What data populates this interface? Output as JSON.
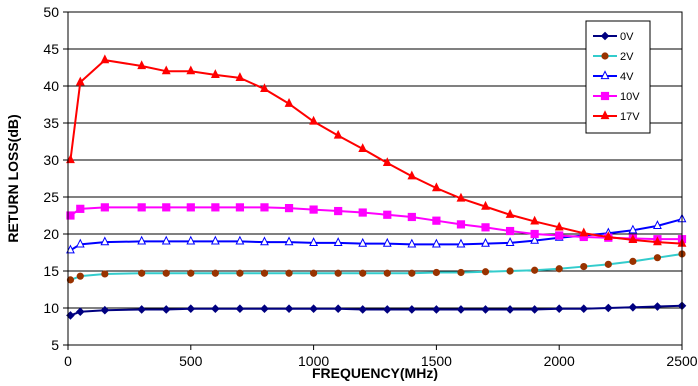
{
  "chart_data": {
    "type": "line",
    "title": "",
    "xlabel": "FREQUENCY(MHz)",
    "ylabel": "RETURN LOSS(dB)",
    "xlim": [
      0,
      2500
    ],
    "ylim": [
      5,
      50
    ],
    "xticks": [
      0,
      500,
      1000,
      1500,
      2000,
      2500
    ],
    "yticks": [
      5,
      10,
      15,
      20,
      25,
      30,
      35,
      40,
      45,
      50
    ],
    "grid": "horizontal",
    "legend": "top-right",
    "series": [
      {
        "name": "0V",
        "color": "#000080",
        "marker": "diamond",
        "x": [
          10,
          50,
          150,
          300,
          400,
          500,
          600,
          700,
          800,
          900,
          1000,
          1100,
          1200,
          1300,
          1400,
          1500,
          1600,
          1700,
          1800,
          1900,
          2000,
          2100,
          2200,
          2300,
          2400,
          2500
        ],
        "y": [
          9.0,
          9.5,
          9.7,
          9.8,
          9.8,
          9.9,
          9.9,
          9.9,
          9.9,
          9.9,
          9.9,
          9.9,
          9.8,
          9.8,
          9.8,
          9.8,
          9.8,
          9.8,
          9.8,
          9.8,
          9.9,
          9.9,
          10.0,
          10.1,
          10.2,
          10.3
        ]
      },
      {
        "name": "2V",
        "color": "#993300",
        "marker": "circle",
        "line_color": "#33CCCC",
        "x": [
          10,
          50,
          150,
          300,
          400,
          500,
          600,
          700,
          800,
          900,
          1000,
          1100,
          1200,
          1300,
          1400,
          1500,
          1600,
          1700,
          1800,
          1900,
          2000,
          2100,
          2200,
          2300,
          2400,
          2500
        ],
        "y": [
          13.8,
          14.3,
          14.6,
          14.7,
          14.7,
          14.7,
          14.7,
          14.7,
          14.7,
          14.7,
          14.7,
          14.7,
          14.7,
          14.7,
          14.7,
          14.8,
          14.8,
          14.9,
          15.0,
          15.1,
          15.3,
          15.6,
          15.9,
          16.3,
          16.8,
          17.3
        ]
      },
      {
        "name": "4V",
        "color": "#0000FF",
        "marker": "triangle-open",
        "x": [
          10,
          50,
          150,
          300,
          400,
          500,
          600,
          700,
          800,
          900,
          1000,
          1100,
          1200,
          1300,
          1400,
          1500,
          1600,
          1700,
          1800,
          1900,
          2000,
          2100,
          2200,
          2300,
          2400,
          2500
        ],
        "y": [
          17.8,
          18.6,
          18.9,
          19.0,
          19.0,
          19.0,
          19.0,
          19.0,
          18.9,
          18.9,
          18.8,
          18.8,
          18.7,
          18.7,
          18.6,
          18.6,
          18.6,
          18.7,
          18.8,
          19.1,
          19.5,
          19.8,
          20.1,
          20.5,
          21.1,
          22.0
        ]
      },
      {
        "name": "10V",
        "color": "#FF00FF",
        "marker": "square",
        "x": [
          10,
          50,
          150,
          300,
          400,
          500,
          600,
          700,
          800,
          900,
          1000,
          1100,
          1200,
          1300,
          1400,
          1500,
          1600,
          1700,
          1800,
          1900,
          2000,
          2100,
          2200,
          2300,
          2400,
          2500
        ],
        "y": [
          22.5,
          23.4,
          23.6,
          23.6,
          23.6,
          23.6,
          23.6,
          23.6,
          23.6,
          23.5,
          23.3,
          23.1,
          22.9,
          22.6,
          22.3,
          21.8,
          21.3,
          20.9,
          20.4,
          20.0,
          19.8,
          19.6,
          19.5,
          19.4,
          19.3,
          19.3
        ]
      },
      {
        "name": "17V",
        "color": "#FF0000",
        "marker": "triangle",
        "x": [
          10,
          50,
          150,
          300,
          400,
          500,
          600,
          700,
          800,
          900,
          1000,
          1100,
          1200,
          1300,
          1400,
          1500,
          1600,
          1700,
          1800,
          1900,
          2000,
          2100,
          2200,
          2300,
          2400,
          2500
        ],
        "y": [
          30.0,
          40.5,
          43.5,
          42.7,
          42.0,
          42.0,
          41.5,
          41.1,
          39.6,
          37.6,
          35.2,
          33.3,
          31.5,
          29.6,
          27.8,
          26.2,
          24.8,
          23.7,
          22.6,
          21.7,
          20.9,
          20.1,
          19.6,
          19.2,
          18.9,
          18.7
        ]
      }
    ]
  }
}
